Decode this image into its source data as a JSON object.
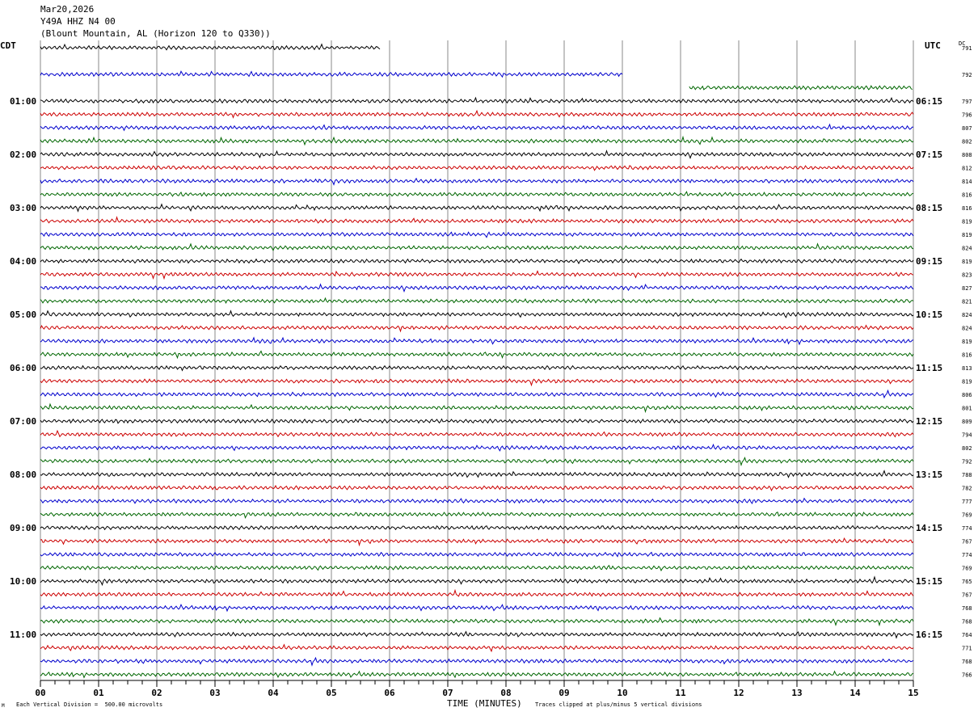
{
  "header": {
    "date": "Mar20,2026",
    "station": "Y49A HHZ N4 00",
    "location": "(Blount Mountain, AL (Horizon 120 to Q330))"
  },
  "left_timezone": "CDT",
  "right_timezone": "UTC",
  "dc_label": "DC",
  "footer": {
    "scale_note": "Each Vertical Division =  500.00 microvolts",
    "xlabel": "TIME (MINUTES)",
    "clip_note": "Traces clipped at plus/minus 5 vertical divisions",
    "corner_mark": "M"
  },
  "colors": {
    "trace_cycle": [
      "#000000",
      "#cc0000",
      "#0000cc",
      "#006600"
    ],
    "grid": "#888888"
  },
  "chart_data": {
    "type": "line",
    "title": "",
    "xlabel": "TIME (MINUTES)",
    "x_ticks": [
      "00",
      "01",
      "02",
      "03",
      "04",
      "05",
      "06",
      "07",
      "08",
      "09",
      "10",
      "11",
      "12",
      "13",
      "14",
      "15"
    ],
    "xlim": [
      0,
      15
    ],
    "trace_count": 48,
    "left_hour_labels": [
      {
        "row": 4,
        "label": "01:00"
      },
      {
        "row": 8,
        "label": "02:00"
      },
      {
        "row": 12,
        "label": "03:00"
      },
      {
        "row": 16,
        "label": "04:00"
      },
      {
        "row": 20,
        "label": "05:00"
      },
      {
        "row": 24,
        "label": "06:00"
      },
      {
        "row": 28,
        "label": "07:00"
      },
      {
        "row": 32,
        "label": "08:00"
      },
      {
        "row": 36,
        "label": "09:00"
      },
      {
        "row": 40,
        "label": "10:00"
      },
      {
        "row": 44,
        "label": "11:00"
      }
    ],
    "right_hour_labels": [
      {
        "row": 4,
        "label": "06:15"
      },
      {
        "row": 8,
        "label": "07:15"
      },
      {
        "row": 12,
        "label": "08:15"
      },
      {
        "row": 16,
        "label": "09:15"
      },
      {
        "row": 20,
        "label": "10:15"
      },
      {
        "row": 24,
        "label": "11:15"
      },
      {
        "row": 28,
        "label": "12:15"
      },
      {
        "row": 32,
        "label": "13:15"
      },
      {
        "row": 36,
        "label": "14:15"
      },
      {
        "row": 40,
        "label": "15:15"
      },
      {
        "row": 44,
        "label": "16:15"
      }
    ],
    "dc_offsets": [
      "791",
      "",
      "792",
      "",
      "797",
      "796",
      "807",
      "802",
      "808",
      "812",
      "814",
      "816",
      "816",
      "819",
      "819",
      "824",
      "819",
      "823",
      "827",
      "821",
      "824",
      "824",
      "819",
      "816",
      "813",
      "819",
      "806",
      "801",
      "809",
      "794",
      "802",
      "792",
      "788",
      "782",
      "777",
      "769",
      "774",
      "767",
      "774",
      "769",
      "765",
      "767",
      "768",
      "768",
      "764",
      "771",
      "768",
      "766"
    ],
    "trace_segments": [
      [
        [
          0,
          5.85
        ]
      ],
      [],
      [
        [
          0,
          10.0
        ]
      ],
      [
        [
          11.15,
          15
        ]
      ]
    ]
  }
}
